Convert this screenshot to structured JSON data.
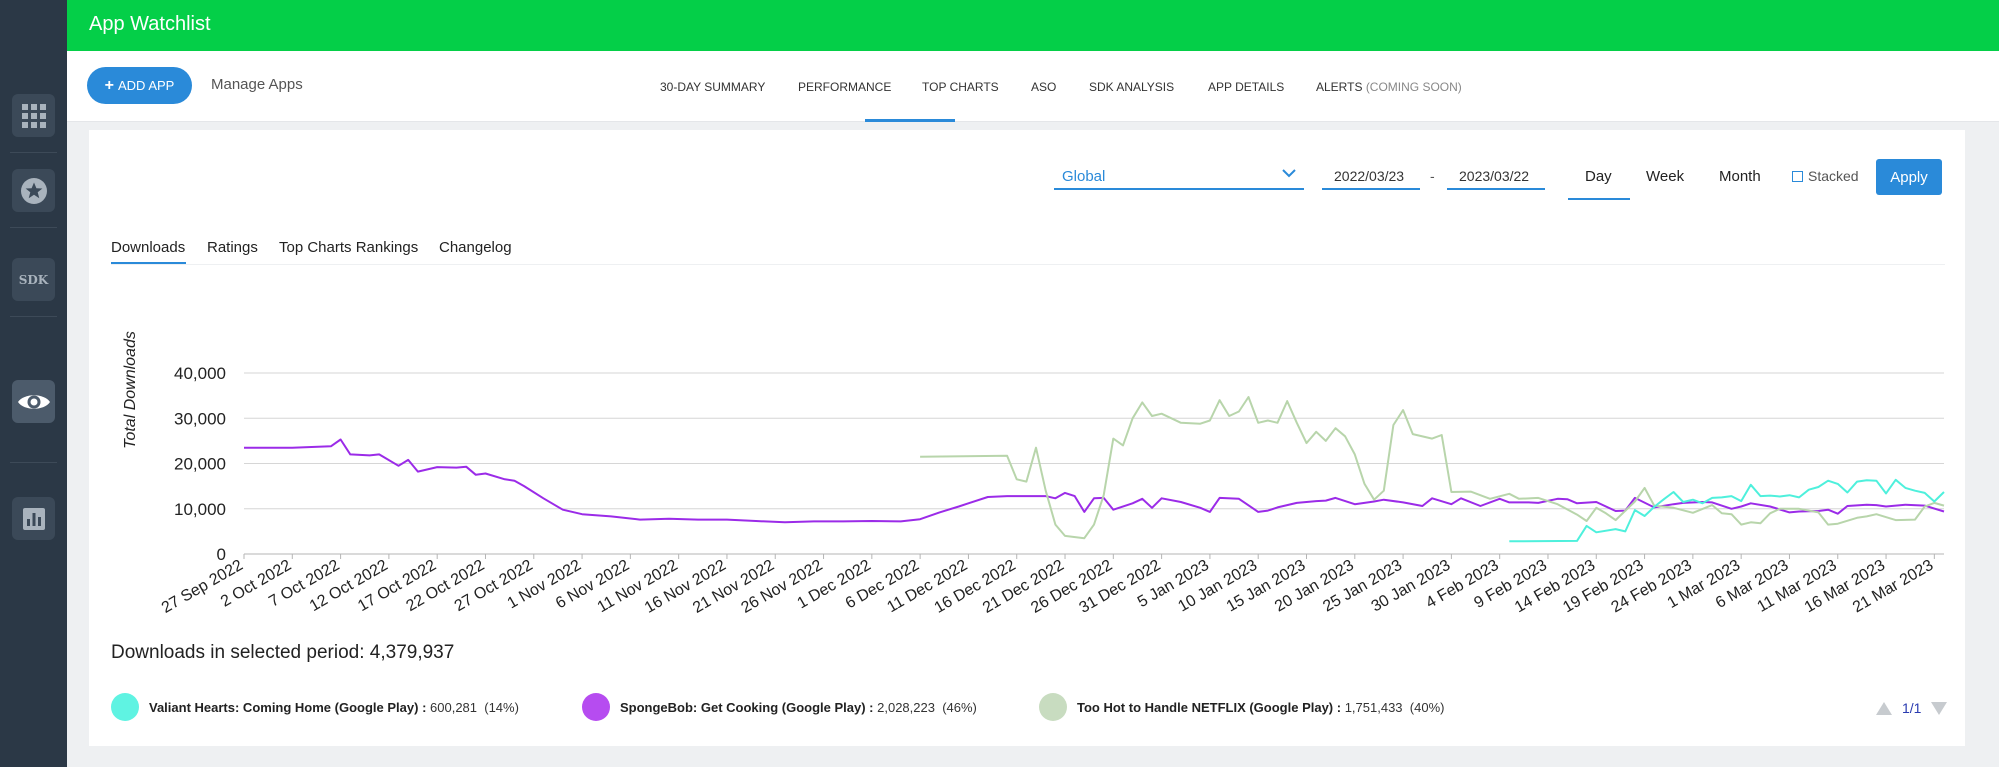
{
  "app": {
    "title": "App Watchlist"
  },
  "sidebar": {
    "items": [
      {
        "icon": "grid-icon"
      },
      {
        "icon": "star-icon"
      },
      {
        "icon": "sdk-icon",
        "label": "SDK"
      },
      {
        "icon": "eye-icon",
        "active": true
      },
      {
        "icon": "bar-chart-icon"
      }
    ]
  },
  "header": {
    "add_label": "ADD APP",
    "manage_label": "Manage Apps",
    "tabs": [
      {
        "label": "30-DAY SUMMARY"
      },
      {
        "label": "PERFORMANCE",
        "active": true
      },
      {
        "label": "TOP CHARTS"
      },
      {
        "label": "ASO"
      },
      {
        "label": "SDK ANALYSIS"
      },
      {
        "label": "APP DETAILS"
      },
      {
        "label": "ALERTS",
        "suffix": "(COMING SOON)"
      }
    ]
  },
  "filters": {
    "region": "Global",
    "date_from": "2022/03/23",
    "date_sep": "-",
    "date_to": "2023/03/22",
    "periods": [
      "Day",
      "Week",
      "Month"
    ],
    "selected_period": "Day",
    "stacked_label": "Stacked",
    "stacked_checked": false,
    "apply_label": "Apply"
  },
  "subtabs": [
    {
      "label": "Downloads",
      "active": true
    },
    {
      "label": "Ratings"
    },
    {
      "label": "Top Charts Rankings"
    },
    {
      "label": "Changelog"
    }
  ],
  "summary": {
    "label": "Downloads in selected period:",
    "value": "4,379,937"
  },
  "legend": [
    {
      "name": "Valiant Hearts: Coming Home (Google Play)",
      "value": "600,281",
      "pct": "(14%)",
      "color": "#5ff3e2"
    },
    {
      "name": "SpongeBob: Get Cooking (Google Play)",
      "value": "2,028,223",
      "pct": "(46%)",
      "color": "#b64cf0"
    },
    {
      "name": "Too Hot to Handle NETFLIX (Google Play)",
      "value": "1,751,433",
      "pct": "(40%)",
      "color": "#c8dcc0"
    }
  ],
  "pager": {
    "label": "1/1"
  },
  "colors": {
    "accent": "#2a8ad9",
    "topbar": "#04cf48",
    "sidebar": "#2b3846"
  },
  "chart_data": {
    "type": "line",
    "ylabel": "Total Downloads",
    "ylim": [
      0,
      40000
    ],
    "yticks": [
      "0",
      "10,000",
      "20,000",
      "30,000",
      "40,000"
    ],
    "x_start": "2022-09-27",
    "x_end": "2023-03-22",
    "xticks": [
      "27 Sep 2022",
      "2 Oct 2022",
      "7 Oct 2022",
      "12 Oct 2022",
      "17 Oct 2022",
      "22 Oct 2022",
      "27 Oct 2022",
      "1 Nov 2022",
      "6 Nov 2022",
      "11 Nov 2022",
      "16 Nov 2022",
      "21 Nov 2022",
      "26 Nov 2022",
      "1 Dec 2022",
      "6 Dec 2022",
      "11 Dec 2022",
      "16 Dec 2022",
      "21 Dec 2022",
      "26 Dec 2022",
      "31 Dec 2022",
      "5 Jan 2023",
      "10 Jan 2023",
      "15 Jan 2023",
      "20 Jan 2023",
      "25 Jan 2023",
      "30 Jan 2023",
      "4 Feb 2023",
      "9 Feb 2023",
      "14 Feb 2023",
      "19 Feb 2023",
      "24 Feb 2023",
      "1 Mar 2023",
      "6 Mar 2023",
      "11 Mar 2023",
      "16 Mar 2023",
      "21 Mar 2023"
    ],
    "grid": true,
    "series": [
      {
        "name": "SpongeBob: Get Cooking (Google Play)",
        "color": "#9b2be8",
        "points": [
          [
            "2022-09-27",
            23500
          ],
          [
            "2022-10-02",
            23500
          ],
          [
            "2022-10-06",
            23800
          ],
          [
            "2022-10-07",
            25300
          ],
          [
            "2022-10-08",
            22000
          ],
          [
            "2022-10-10",
            21800
          ],
          [
            "2022-10-11",
            22000
          ],
          [
            "2022-10-13",
            19500
          ],
          [
            "2022-10-14",
            20800
          ],
          [
            "2022-10-15",
            18200
          ],
          [
            "2022-10-17",
            19200
          ],
          [
            "2022-10-19",
            19100
          ],
          [
            "2022-10-20",
            19300
          ],
          [
            "2022-10-21",
            17500
          ],
          [
            "2022-10-22",
            17800
          ],
          [
            "2022-10-24",
            16500
          ],
          [
            "2022-10-25",
            16200
          ],
          [
            "2022-10-26",
            15000
          ],
          [
            "2022-10-28",
            12300
          ],
          [
            "2022-10-30",
            9800
          ],
          [
            "2022-11-01",
            8800
          ],
          [
            "2022-11-04",
            8300
          ],
          [
            "2022-11-07",
            7600
          ],
          [
            "2022-11-10",
            7800
          ],
          [
            "2022-11-13",
            7600
          ],
          [
            "2022-11-16",
            7600
          ],
          [
            "2022-11-19",
            7300
          ],
          [
            "2022-11-22",
            7000
          ],
          [
            "2022-11-25",
            7200
          ],
          [
            "2022-11-28",
            7200
          ],
          [
            "2022-12-01",
            7300
          ],
          [
            "2022-12-04",
            7200
          ],
          [
            "2022-12-06",
            7700
          ],
          [
            "2022-12-08",
            9200
          ],
          [
            "2022-12-10",
            10500
          ],
          [
            "2022-12-11",
            11200
          ],
          [
            "2022-12-13",
            12600
          ],
          [
            "2022-12-15",
            12800
          ],
          [
            "2022-12-17",
            12800
          ],
          [
            "2022-12-19",
            12800
          ],
          [
            "2022-12-20",
            12300
          ],
          [
            "2022-12-21",
            13500
          ],
          [
            "2022-12-22",
            12800
          ],
          [
            "2022-12-23",
            9300
          ],
          [
            "2022-12-24",
            12300
          ],
          [
            "2022-12-25",
            12400
          ],
          [
            "2022-12-26",
            9800
          ],
          [
            "2022-12-28",
            11200
          ],
          [
            "2022-12-29",
            12200
          ],
          [
            "2022-12-30",
            10200
          ],
          [
            "2022-12-31",
            12300
          ],
          [
            "2023-01-02",
            11500
          ],
          [
            "2023-01-04",
            10200
          ],
          [
            "2023-01-05",
            9300
          ],
          [
            "2023-01-06",
            12400
          ],
          [
            "2023-01-08",
            12200
          ],
          [
            "2023-01-10",
            9300
          ],
          [
            "2023-01-11",
            9600
          ],
          [
            "2023-01-12",
            10300
          ],
          [
            "2023-01-14",
            11300
          ],
          [
            "2023-01-16",
            11700
          ],
          [
            "2023-01-17",
            11800
          ],
          [
            "2023-01-18",
            12400
          ],
          [
            "2023-01-20",
            11000
          ],
          [
            "2023-01-22",
            11600
          ],
          [
            "2023-01-23",
            12000
          ],
          [
            "2023-01-25",
            11400
          ],
          [
            "2023-01-27",
            10600
          ],
          [
            "2023-01-28",
            12300
          ],
          [
            "2023-01-30",
            11000
          ],
          [
            "2023-01-31",
            12300
          ],
          [
            "2023-02-02",
            10600
          ],
          [
            "2023-02-04",
            12200
          ],
          [
            "2023-02-05",
            11400
          ],
          [
            "2023-02-07",
            11400
          ],
          [
            "2023-02-08",
            11300
          ],
          [
            "2023-02-10",
            12200
          ],
          [
            "2023-02-11",
            12100
          ],
          [
            "2023-02-12",
            11200
          ],
          [
            "2023-02-14",
            11500
          ],
          [
            "2023-02-16",
            9500
          ],
          [
            "2023-02-17",
            9600
          ],
          [
            "2023-02-18",
            12400
          ],
          [
            "2023-02-20",
            10300
          ],
          [
            "2023-02-22",
            11000
          ],
          [
            "2023-02-23",
            11300
          ],
          [
            "2023-02-25",
            11500
          ],
          [
            "2023-02-26",
            11400
          ],
          [
            "2023-02-28",
            10000
          ],
          [
            "2023-03-01",
            10500
          ],
          [
            "2023-03-02",
            11200
          ],
          [
            "2023-03-04",
            10500
          ],
          [
            "2023-03-06",
            9200
          ],
          [
            "2023-03-07",
            9400
          ],
          [
            "2023-03-09",
            9500
          ],
          [
            "2023-03-10",
            9800
          ],
          [
            "2023-03-11",
            8900
          ],
          [
            "2023-03-12",
            10600
          ],
          [
            "2023-03-14",
            10900
          ],
          [
            "2023-03-15",
            10800
          ],
          [
            "2023-03-16",
            10500
          ],
          [
            "2023-03-18",
            10900
          ],
          [
            "2023-03-20",
            10700
          ],
          [
            "2023-03-22",
            9400
          ]
        ]
      },
      {
        "name": "Too Hot to Handle NETFLIX (Google Play)",
        "color": "#b8d5ab",
        "points": [
          [
            "2022-12-06",
            21500
          ],
          [
            "2022-12-15",
            21700
          ],
          [
            "2022-12-16",
            16500
          ],
          [
            "2022-12-17",
            16000
          ],
          [
            "2022-12-18",
            23500
          ],
          [
            "2022-12-19",
            14000
          ],
          [
            "2022-12-20",
            6500
          ],
          [
            "2022-12-21",
            4000
          ],
          [
            "2022-12-23",
            3500
          ],
          [
            "2022-12-24",
            6500
          ],
          [
            "2022-12-25",
            13000
          ],
          [
            "2022-12-26",
            25500
          ],
          [
            "2022-12-27",
            24000
          ],
          [
            "2022-12-28",
            30000
          ],
          [
            "2022-12-29",
            33500
          ],
          [
            "2022-12-30",
            30500
          ],
          [
            "2022-12-31",
            31000
          ],
          [
            "2023-01-02",
            29000
          ],
          [
            "2023-01-04",
            28800
          ],
          [
            "2023-01-05",
            29500
          ],
          [
            "2023-01-06",
            34000
          ],
          [
            "2023-01-07",
            30500
          ],
          [
            "2023-01-08",
            31500
          ],
          [
            "2023-01-09",
            34700
          ],
          [
            "2023-01-10",
            29000
          ],
          [
            "2023-01-11",
            29500
          ],
          [
            "2023-01-12",
            29000
          ],
          [
            "2023-01-13",
            33800
          ],
          [
            "2023-01-14",
            29000
          ],
          [
            "2023-01-15",
            24500
          ],
          [
            "2023-01-16",
            27000
          ],
          [
            "2023-01-17",
            25000
          ],
          [
            "2023-01-18",
            27800
          ],
          [
            "2023-01-19",
            26000
          ],
          [
            "2023-01-20",
            22000
          ],
          [
            "2023-01-21",
            15500
          ],
          [
            "2023-01-22",
            12000
          ],
          [
            "2023-01-23",
            14000
          ],
          [
            "2023-01-24",
            28500
          ],
          [
            "2023-01-25",
            31800
          ],
          [
            "2023-01-26",
            26500
          ],
          [
            "2023-01-28",
            25500
          ],
          [
            "2023-01-29",
            26300
          ],
          [
            "2023-01-30",
            13700
          ],
          [
            "2023-02-01",
            13800
          ],
          [
            "2023-02-03",
            12200
          ],
          [
            "2023-02-05",
            13300
          ],
          [
            "2023-02-06",
            12200
          ],
          [
            "2023-02-08",
            12400
          ],
          [
            "2023-02-10",
            11000
          ],
          [
            "2023-02-12",
            8700
          ],
          [
            "2023-02-13",
            7300
          ],
          [
            "2023-02-14",
            10200
          ],
          [
            "2023-02-15",
            9000
          ],
          [
            "2023-02-16",
            7500
          ],
          [
            "2023-02-18",
            11600
          ],
          [
            "2023-02-19",
            14600
          ],
          [
            "2023-02-20",
            10700
          ],
          [
            "2023-02-22",
            10200
          ],
          [
            "2023-02-24",
            9100
          ],
          [
            "2023-02-26",
            10800
          ],
          [
            "2023-02-27",
            9000
          ],
          [
            "2023-02-28",
            8800
          ],
          [
            "2023-03-01",
            6500
          ],
          [
            "2023-03-02",
            7000
          ],
          [
            "2023-03-03",
            6800
          ],
          [
            "2023-03-04",
            9000
          ],
          [
            "2023-03-05",
            10000
          ],
          [
            "2023-03-07",
            10000
          ],
          [
            "2023-03-09",
            9200
          ],
          [
            "2023-03-10",
            6500
          ],
          [
            "2023-03-11",
            6700
          ],
          [
            "2023-03-13",
            8000
          ],
          [
            "2023-03-14",
            8300
          ],
          [
            "2023-03-15",
            8800
          ],
          [
            "2023-03-17",
            7500
          ],
          [
            "2023-03-19",
            7600
          ],
          [
            "2023-03-20",
            10500
          ],
          [
            "2023-03-21",
            11300
          ],
          [
            "2023-03-22",
            10700
          ]
        ]
      },
      {
        "name": "Valiant Hearts: Coming Home (Google Play)",
        "color": "#4ef0dc",
        "points": [
          [
            "2023-02-05",
            2800
          ],
          [
            "2023-02-12",
            2900
          ],
          [
            "2023-02-13",
            6200
          ],
          [
            "2023-02-14",
            4800
          ],
          [
            "2023-02-16",
            5500
          ],
          [
            "2023-02-17",
            5000
          ],
          [
            "2023-02-18",
            9700
          ],
          [
            "2023-02-19",
            8400
          ],
          [
            "2023-02-20",
            10400
          ],
          [
            "2023-02-21",
            12100
          ],
          [
            "2023-02-22",
            13700
          ],
          [
            "2023-02-23",
            11500
          ],
          [
            "2023-02-24",
            12000
          ],
          [
            "2023-02-25",
            11200
          ],
          [
            "2023-02-26",
            12400
          ],
          [
            "2023-02-27",
            12500
          ],
          [
            "2023-02-28",
            12800
          ],
          [
            "2023-03-01",
            11700
          ],
          [
            "2023-03-02",
            15300
          ],
          [
            "2023-03-03",
            12800
          ],
          [
            "2023-03-04",
            12900
          ],
          [
            "2023-03-05",
            12700
          ],
          [
            "2023-03-06",
            13000
          ],
          [
            "2023-03-07",
            12500
          ],
          [
            "2023-03-08",
            14200
          ],
          [
            "2023-03-09",
            14800
          ],
          [
            "2023-03-10",
            16200
          ],
          [
            "2023-03-11",
            15500
          ],
          [
            "2023-03-12",
            13600
          ],
          [
            "2023-03-13",
            16000
          ],
          [
            "2023-03-14",
            16300
          ],
          [
            "2023-03-15",
            16200
          ],
          [
            "2023-03-16",
            13400
          ],
          [
            "2023-03-17",
            16400
          ],
          [
            "2023-03-18",
            14600
          ],
          [
            "2023-03-19",
            14000
          ],
          [
            "2023-03-20",
            13500
          ],
          [
            "2023-03-21",
            11600
          ],
          [
            "2023-03-22",
            13700
          ]
        ]
      }
    ]
  }
}
